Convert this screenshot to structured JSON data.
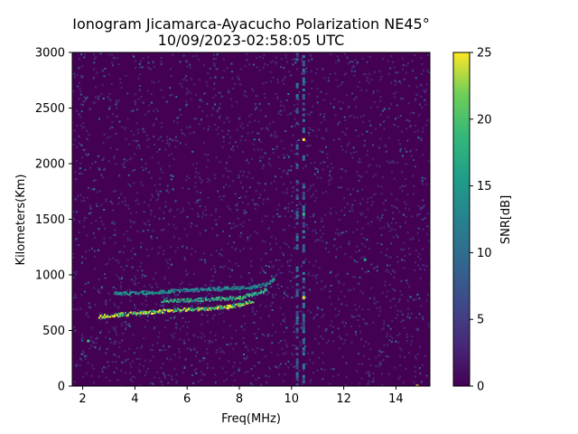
{
  "chart_data": {
    "type": "heatmap",
    "title_line1": "Ionogram Jicamarca-Ayacucho Polarization NE45°",
    "title_line2": "10/09/2023-02:58:05 UTC",
    "xlabel": "Freq(MHz)",
    "ylabel": "Kilometers(Km)",
    "colorbar_label": "SNR[dB]",
    "colormap": "viridis",
    "xlim": [
      1.6,
      15.3
    ],
    "ylim": [
      0,
      3000
    ],
    "clim": [
      0,
      25
    ],
    "x_ticks": [
      2,
      4,
      6,
      8,
      10,
      12,
      14
    ],
    "x_tick_labels": [
      "2",
      "4",
      "6",
      "8",
      "10",
      "12",
      "14"
    ],
    "y_ticks": [
      0,
      500,
      1000,
      1500,
      2000,
      2500,
      3000
    ],
    "y_tick_labels": [
      "0",
      "500",
      "1000",
      "1500",
      "2000",
      "2500",
      "3000"
    ],
    "colorbar_ticks": [
      0,
      5,
      10,
      15,
      20,
      25
    ],
    "colorbar_tick_labels": [
      "0",
      "5",
      "10",
      "15",
      "20",
      "25"
    ],
    "grid": false,
    "background_snr_db": 0,
    "traces": [
      {
        "freq_mhz": [
          2.6,
          3.5,
          4.5,
          5.5,
          6.5,
          7.5,
          8.0,
          8.5
        ],
        "range_km": [
          630,
          650,
          670,
          690,
          700,
          720,
          740,
          770
        ],
        "snr_db": 25
      },
      {
        "freq_mhz": [
          3.2,
          4.0,
          5.0,
          6.0,
          7.0,
          8.0,
          8.5,
          9.0,
          9.3
        ],
        "range_km": [
          840,
          845,
          855,
          870,
          880,
          890,
          900,
          920,
          960
        ],
        "snr_db": 15
      },
      {
        "freq_mhz": [
          5.0,
          6.0,
          7.0,
          8.0,
          8.5,
          9.0
        ],
        "range_km": [
          770,
          780,
          790,
          800,
          830,
          870
        ],
        "snr_db": 20
      }
    ],
    "spurious_lines": [
      {
        "freq_mhz": 10.2,
        "range_km": [
          0,
          3000
        ],
        "snr_db": 10
      },
      {
        "freq_mhz": 10.45,
        "range_km": [
          0,
          3000
        ],
        "snr_db": 12
      }
    ],
    "isolated_echoes": [
      {
        "freq_mhz": 2.2,
        "range_km": 410,
        "snr_db": 20
      },
      {
        "freq_mhz": 10.45,
        "range_km": 2220,
        "snr_db": 25
      },
      {
        "freq_mhz": 10.45,
        "range_km": 1550,
        "snr_db": 20
      },
      {
        "freq_mhz": 10.45,
        "range_km": 800,
        "snr_db": 25
      },
      {
        "freq_mhz": 12.8,
        "range_km": 1140,
        "snr_db": 15
      },
      {
        "freq_mhz": 14.8,
        "range_km": 5,
        "snr_db": 25
      }
    ]
  }
}
